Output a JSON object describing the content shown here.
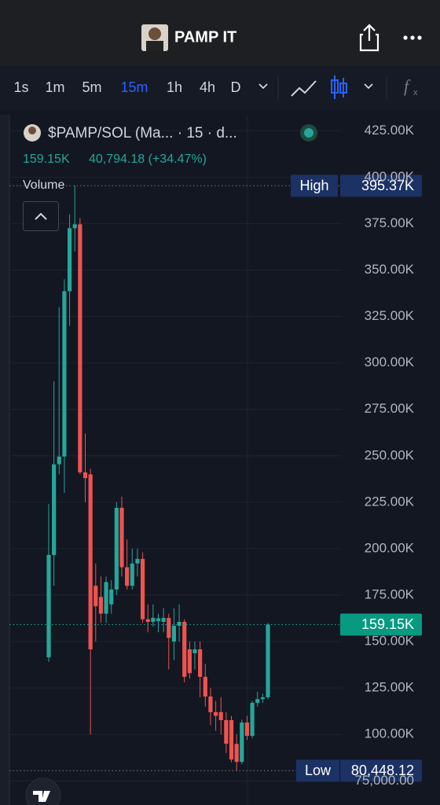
{
  "header": {
    "title": "PAMP IT"
  },
  "toolbar": {
    "intervals": [
      "1s",
      "1m",
      "5m",
      "15m",
      "1h",
      "4h",
      "D"
    ],
    "active": 3
  },
  "chart_data": {
    "type": "candlestick",
    "legend_title": "$PAMP/SOL (Ma... · 15 · d...",
    "legend_price": "159.15K",
    "legend_change": "40,794.18 (+34.47%)",
    "pane_label": "Volume",
    "up_color": "#26a69a",
    "down_color": "#ef5350",
    "open": [
      141500,
      196600,
      245400,
      249600,
      338600,
      372500,
      374600,
      241100,
      240000,
      180000,
      174000,
      165000,
      170000,
      178000,
      222000,
      190000,
      180000,
      192000,
      194500,
      162000,
      160600,
      161000,
      160600,
      162700,
      150000,
      158500,
      160600,
      145800,
      143700,
      145800,
      131000,
      120400,
      112000,
      112000,
      107700,
      107700,
      94900,
      85200,
      106400,
      99200,
      117000,
      119000,
      120000
    ],
    "high": [
      224000,
      290000,
      330000,
      345000,
      380000,
      395370,
      378000,
      262000,
      243000,
      192000,
      185000,
      185000,
      183000,
      225000,
      228000,
      205000,
      200000,
      200000,
      198000,
      170000,
      170000,
      165000,
      168000,
      165000,
      168000,
      170000,
      162000,
      150000,
      150000,
      150000,
      138000,
      125000,
      118000,
      120000,
      112000,
      110000,
      100000,
      108000,
      110000,
      118000,
      123000,
      122000,
      160000
    ],
    "low": [
      139000,
      180000,
      240000,
      230000,
      320000,
      360000,
      240000,
      225000,
      100000,
      150000,
      160000,
      160000,
      165000,
      175000,
      185000,
      178000,
      178000,
      185000,
      160000,
      155000,
      158000,
      155000,
      155000,
      135000,
      140000,
      150000,
      128000,
      130000,
      135000,
      120000,
      115000,
      105000,
      102000,
      100000,
      90000,
      85000,
      80448.12,
      84000,
      97000,
      98000,
      115000,
      117000,
      119000
    ],
    "close": [
      196600,
      245400,
      249600,
      338600,
      372500,
      374600,
      241100,
      238000,
      145800,
      169000,
      165000,
      182000,
      178000,
      222000,
      190000,
      180000,
      192000,
      194500,
      162000,
      160600,
      162700,
      162500,
      162700,
      152000,
      158500,
      160600,
      131000,
      133000,
      145800,
      131000,
      120400,
      112000,
      110000,
      107700,
      95000,
      86500,
      85200,
      106400,
      99200,
      117000,
      119000,
      120000,
      159150
    ],
    "ylim": [
      62000,
      434000
    ],
    "yticks": [
      {
        "value": 75000,
        "label": "75,000.00"
      },
      {
        "value": 100000,
        "label": "100.00K"
      },
      {
        "value": 125000,
        "label": "125.00K"
      },
      {
        "value": 150000,
        "label": "150.00K"
      },
      {
        "value": 175000,
        "label": "175.00K"
      },
      {
        "value": 200000,
        "label": "200.00K"
      },
      {
        "value": 225000,
        "label": "225.00K"
      },
      {
        "value": 250000,
        "label": "250.00K"
      },
      {
        "value": 275000,
        "label": "275.00K"
      },
      {
        "value": 300000,
        "label": "300.00K"
      },
      {
        "value": 325000,
        "label": "325.00K"
      },
      {
        "value": 350000,
        "label": "350.00K"
      },
      {
        "value": 375000,
        "label": "375.00K"
      },
      {
        "value": 400000,
        "label": "400.00K"
      },
      {
        "value": 425000,
        "label": "425.00K"
      }
    ],
    "grid": true,
    "high_marker": {
      "label": "High",
      "value": 395370,
      "value_label": "395.37K"
    },
    "low_marker": {
      "label": "Low",
      "value": 80448.12,
      "value_label": "80,448.12"
    },
    "last_price": {
      "value": 159150,
      "value_label": "159.15K"
    }
  }
}
